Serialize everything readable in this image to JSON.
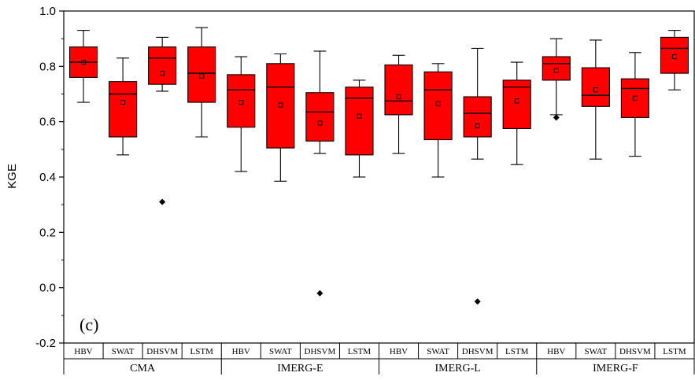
{
  "chart_data": {
    "type": "box",
    "title": "",
    "ylabel": "KGE",
    "ylim": [
      -0.2,
      1.0
    ],
    "yticks": [
      "-0.2",
      "0.0",
      "0.2",
      "0.4",
      "0.6",
      "0.8",
      "1.0"
    ],
    "panel_label": "(c)",
    "models": [
      "HBV",
      "SWAT",
      "DHSVM",
      "LSTM"
    ],
    "sources": [
      "CMA",
      "IMERG-E",
      "IMERG-L",
      "IMERG-F"
    ],
    "box_color": "#ff0000",
    "boxes": [
      {
        "source": "CMA",
        "model": "HBV",
        "min": 0.67,
        "q1": 0.76,
        "median": 0.815,
        "q3": 0.87,
        "max": 0.93,
        "mean": 0.815,
        "outliers": []
      },
      {
        "source": "CMA",
        "model": "SWAT",
        "min": 0.48,
        "q1": 0.545,
        "median": 0.7,
        "q3": 0.745,
        "max": 0.83,
        "mean": 0.67,
        "outliers": []
      },
      {
        "source": "CMA",
        "model": "DHSVM",
        "min": 0.71,
        "q1": 0.735,
        "median": 0.83,
        "q3": 0.87,
        "max": 0.905,
        "mean": 0.775,
        "outliers": [
          0.31
        ]
      },
      {
        "source": "CMA",
        "model": "LSTM",
        "min": 0.545,
        "q1": 0.67,
        "median": 0.775,
        "q3": 0.87,
        "max": 0.94,
        "mean": 0.765,
        "outliers": []
      },
      {
        "source": "IMERG-E",
        "model": "HBV",
        "min": 0.42,
        "q1": 0.58,
        "median": 0.715,
        "q3": 0.77,
        "max": 0.835,
        "mean": 0.67,
        "outliers": []
      },
      {
        "source": "IMERG-E",
        "model": "SWAT",
        "min": 0.385,
        "q1": 0.505,
        "median": 0.725,
        "q3": 0.81,
        "max": 0.845,
        "mean": 0.66,
        "outliers": []
      },
      {
        "source": "IMERG-E",
        "model": "DHSVM",
        "min": 0.485,
        "q1": 0.53,
        "median": 0.635,
        "q3": 0.705,
        "max": 0.855,
        "mean": 0.595,
        "outliers": [
          -0.02
        ]
      },
      {
        "source": "IMERG-E",
        "model": "LSTM",
        "min": 0.4,
        "q1": 0.48,
        "median": 0.685,
        "q3": 0.725,
        "max": 0.75,
        "mean": 0.62,
        "outliers": []
      },
      {
        "source": "IMERG-L",
        "model": "HBV",
        "min": 0.485,
        "q1": 0.625,
        "median": 0.675,
        "q3": 0.805,
        "max": 0.84,
        "mean": 0.69,
        "outliers": []
      },
      {
        "source": "IMERG-L",
        "model": "SWAT",
        "min": 0.4,
        "q1": 0.535,
        "median": 0.715,
        "q3": 0.78,
        "max": 0.81,
        "mean": 0.665,
        "outliers": []
      },
      {
        "source": "IMERG-L",
        "model": "DHSVM",
        "min": 0.465,
        "q1": 0.545,
        "median": 0.63,
        "q3": 0.69,
        "max": 0.865,
        "mean": 0.585,
        "outliers": [
          -0.05
        ]
      },
      {
        "source": "IMERG-L",
        "model": "LSTM",
        "min": 0.445,
        "q1": 0.575,
        "median": 0.725,
        "q3": 0.75,
        "max": 0.815,
        "mean": 0.675,
        "outliers": []
      },
      {
        "source": "IMERG-F",
        "model": "HBV",
        "min": 0.625,
        "q1": 0.75,
        "median": 0.81,
        "q3": 0.835,
        "max": 0.9,
        "mean": 0.785,
        "outliers": [
          0.615
        ]
      },
      {
        "source": "IMERG-F",
        "model": "SWAT",
        "min": 0.465,
        "q1": 0.655,
        "median": 0.695,
        "q3": 0.795,
        "max": 0.895,
        "mean": 0.715,
        "outliers": []
      },
      {
        "source": "IMERG-F",
        "model": "DHSVM",
        "min": 0.475,
        "q1": 0.615,
        "median": 0.72,
        "q3": 0.755,
        "max": 0.85,
        "mean": 0.685,
        "outliers": []
      },
      {
        "source": "IMERG-F",
        "model": "LSTM",
        "min": 0.715,
        "q1": 0.775,
        "median": 0.865,
        "q3": 0.905,
        "max": 0.93,
        "mean": 0.835,
        "outliers": []
      }
    ]
  }
}
